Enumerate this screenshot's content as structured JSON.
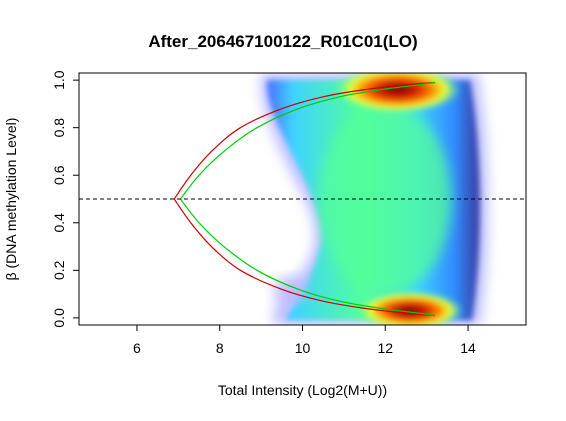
{
  "chart_data": {
    "type": "heatmap",
    "title": "After_206467100122_R01C01(LO)",
    "xlabel": "Total Intensity (Log2(M+U))",
    "ylabel": "β (DNA methylation Level)",
    "xlim": [
      4.6,
      15.4
    ],
    "ylim": [
      -0.03,
      1.03
    ],
    "x_ticks": [
      6,
      8,
      10,
      12,
      14
    ],
    "y_ticks": [
      0.0,
      0.2,
      0.4,
      0.6,
      0.8,
      1.0
    ],
    "x_tick_labels": [
      "6",
      "8",
      "10",
      "12",
      "14"
    ],
    "y_tick_labels": [
      "0.0",
      "0.2",
      "0.4",
      "0.6",
      "0.8",
      "1.0"
    ],
    "reference_line": {
      "y": 0.5,
      "style": "dashed",
      "color": "#000000"
    },
    "density_colormap": [
      "#ffffff",
      "#c8c8ff",
      "#4a6cff",
      "#3fd3ff",
      "#52ff9a",
      "#e8ff3a",
      "#ff8a00",
      "#d02000",
      "#7a0000"
    ],
    "density_hotspots": [
      {
        "x": 12.3,
        "y": 0.96,
        "level": "high"
      },
      {
        "x": 12.6,
        "y": 0.03,
        "level": "high"
      }
    ],
    "curves": [
      {
        "color": "#cc0000",
        "points_upper": [
          [
            6.9,
            0.5
          ],
          [
            7.3,
            0.6
          ],
          [
            7.8,
            0.7
          ],
          [
            8.5,
            0.8
          ],
          [
            9.5,
            0.88
          ],
          [
            10.5,
            0.93
          ],
          [
            11.5,
            0.96
          ],
          [
            12.5,
            0.98
          ],
          [
            13.2,
            0.99
          ]
        ],
        "points_lower": [
          [
            6.9,
            0.5
          ],
          [
            7.3,
            0.4
          ],
          [
            7.8,
            0.3
          ],
          [
            8.5,
            0.2
          ],
          [
            9.5,
            0.12
          ],
          [
            10.5,
            0.07
          ],
          [
            11.5,
            0.04
          ],
          [
            12.5,
            0.02
          ],
          [
            13.2,
            0.01
          ]
        ]
      },
      {
        "color": "#00cc00",
        "points_upper": [
          [
            7.05,
            0.5
          ],
          [
            7.5,
            0.6
          ],
          [
            8.1,
            0.7
          ],
          [
            8.9,
            0.8
          ],
          [
            9.9,
            0.88
          ],
          [
            10.9,
            0.93
          ],
          [
            11.9,
            0.96
          ],
          [
            12.8,
            0.98
          ],
          [
            13.2,
            0.99
          ]
        ],
        "points_lower": [
          [
            7.05,
            0.5
          ],
          [
            7.5,
            0.4
          ],
          [
            8.1,
            0.3
          ],
          [
            8.9,
            0.2
          ],
          [
            9.9,
            0.12
          ],
          [
            10.9,
            0.07
          ],
          [
            11.9,
            0.04
          ],
          [
            12.8,
            0.02
          ],
          [
            13.2,
            0.01
          ]
        ]
      }
    ]
  }
}
